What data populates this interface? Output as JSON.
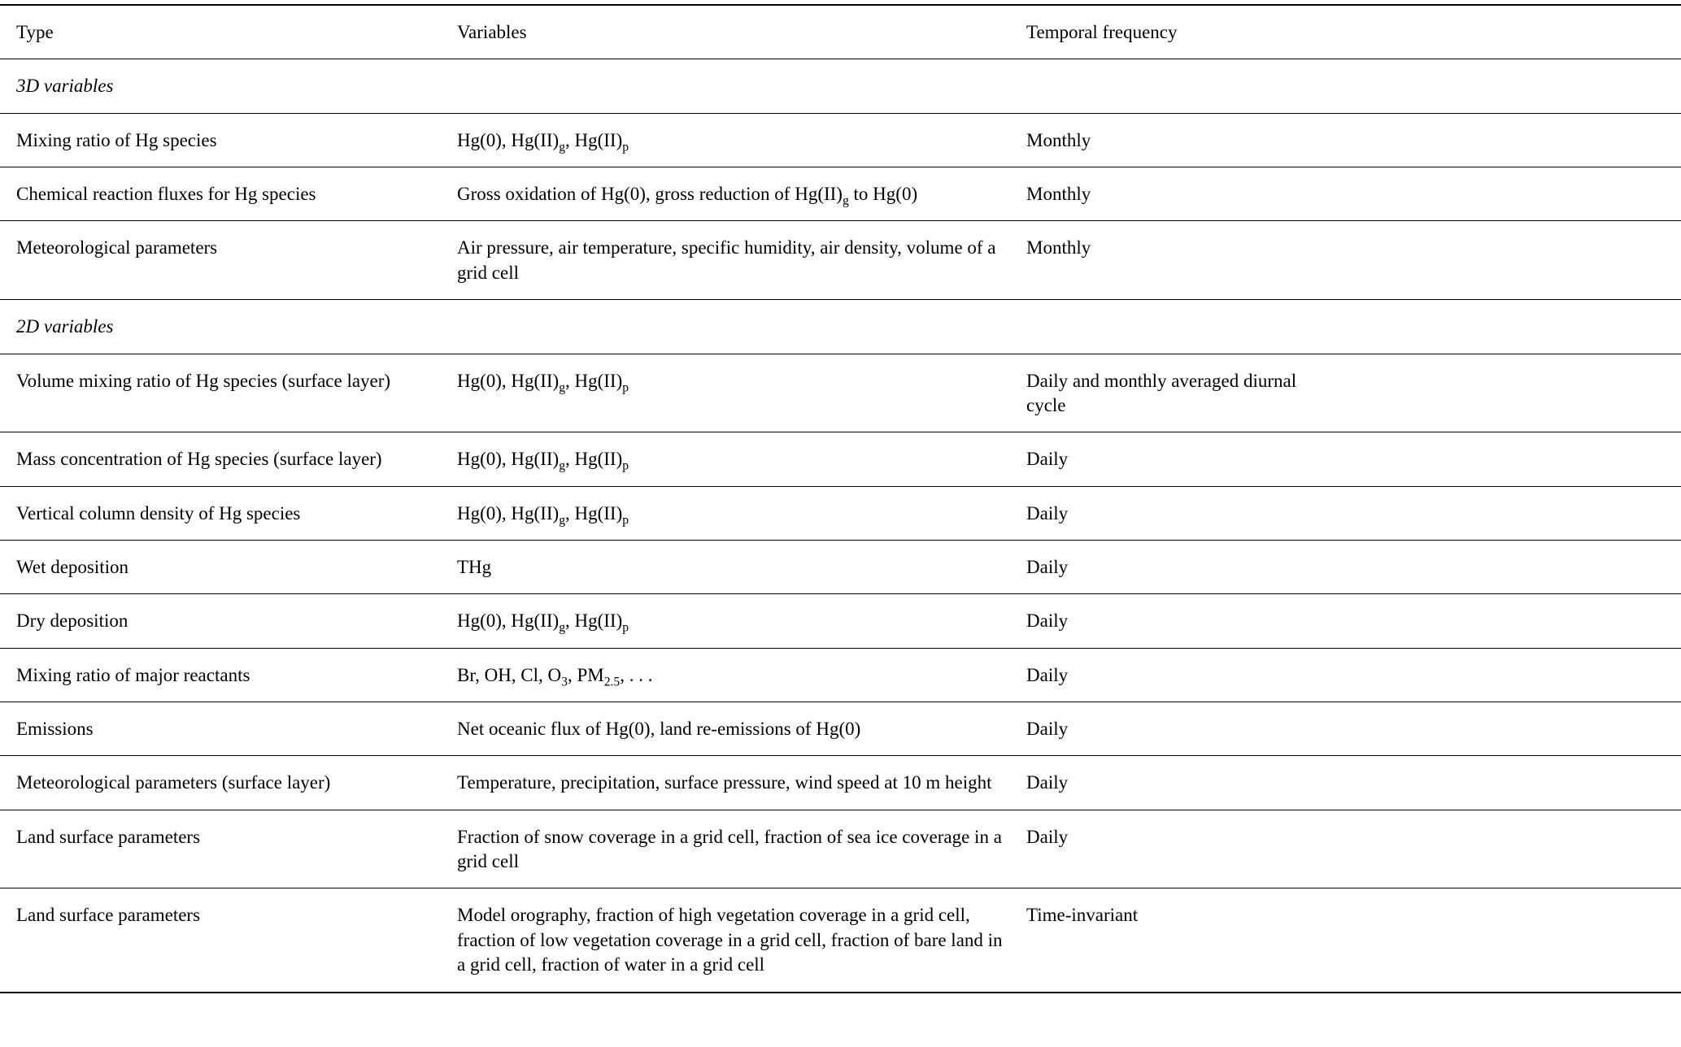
{
  "table": {
    "columns": [
      "Type",
      "Variables",
      "Temporal frequency"
    ],
    "sections": [
      {
        "label": "3D variables",
        "rows": [
          {
            "type": "Mixing ratio of Hg species",
            "variables": "Hg(0), Hg(II)_{g}, Hg(II)_{p}",
            "frequency": "Monthly"
          },
          {
            "type": "Chemical reaction fluxes for Hg species",
            "variables": "Gross oxidation of Hg(0), gross reduction of Hg(II)_{g} to Hg(0)",
            "frequency": "Monthly"
          },
          {
            "type": "Meteorological parameters",
            "variables": "Air pressure, air temperature, specific humidity, air density, volume of a grid cell",
            "frequency": "Monthly"
          }
        ]
      },
      {
        "label": "2D variables",
        "rows": [
          {
            "type": "Volume mixing ratio of Hg species (surface layer)",
            "variables": "Hg(0), Hg(II)_{g}, Hg(II)_{p}",
            "frequency": "Daily and monthly averaged diurnal cycle"
          },
          {
            "type": "Mass concentration of Hg species (surface layer)",
            "variables": "Hg(0), Hg(II)_{g}, Hg(II)_{p}",
            "frequency": "Daily"
          },
          {
            "type": "Vertical column density of Hg species",
            "variables": "Hg(0), Hg(II)_{g}, Hg(II)_{p}",
            "frequency": "Daily"
          },
          {
            "type": "Wet deposition",
            "variables": "THg",
            "frequency": "Daily"
          },
          {
            "type": "Dry deposition",
            "variables": "Hg(0), Hg(II)_{g}, Hg(II)_{p}",
            "frequency": "Daily"
          },
          {
            "type": "Mixing ratio of major reactants",
            "variables": "Br, OH, Cl, O_{3}, PM_{2.5}, . . .",
            "frequency": "Daily"
          },
          {
            "type": "Emissions",
            "variables": "Net oceanic flux of Hg(0), land re-emissions of Hg(0)",
            "frequency": "Daily"
          },
          {
            "type": "Meteorological parameters (surface layer)",
            "variables": "Temperature, precipitation, surface pressure, wind speed at 10 m height",
            "frequency": "Daily"
          },
          {
            "type": "Land surface parameters",
            "variables": "Fraction of snow coverage in a grid cell, fraction of sea ice coverage in a grid cell",
            "frequency": "Daily"
          },
          {
            "type": "Land surface parameters",
            "variables": "Model orography, fraction of high vegetation coverage in a grid cell, fraction of low vegetation coverage in a grid cell, fraction of bare land in a grid cell, fraction of water in a grid cell",
            "frequency": "Time-invariant"
          }
        ]
      }
    ]
  }
}
